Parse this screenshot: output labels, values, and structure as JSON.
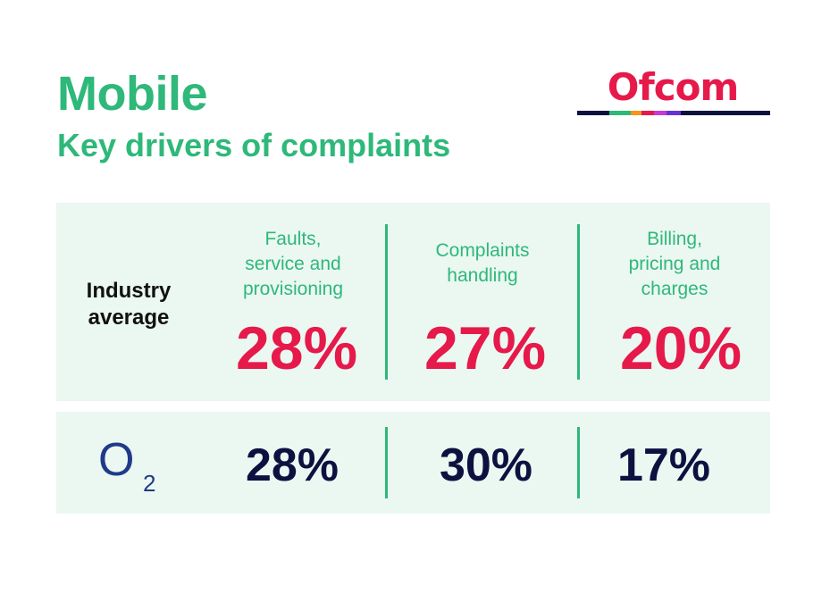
{
  "header": {
    "title": "Mobile",
    "subtitle": "Key drivers of complaints",
    "logo_text": "Ofcom",
    "logo_colors": [
      "#0d1140",
      "#2eb87a",
      "#f7941d",
      "#e6194b",
      "#c63bd1",
      "#6b2fd6",
      "#0d1140"
    ]
  },
  "chart_data": {
    "type": "table",
    "columns": [
      "Faults, service and provisioning",
      "Complaints handling",
      "Billing, pricing and charges"
    ],
    "column_lines": [
      [
        "Faults,",
        "service and",
        "provisioning"
      ],
      [
        "Complaints",
        "handling"
      ],
      [
        "Billing,",
        "pricing and",
        "charges"
      ]
    ],
    "rows": [
      {
        "label": "Industry average",
        "label_lines": [
          "Industry",
          "average"
        ],
        "values": [
          "28%",
          "27%",
          "20%"
        ]
      },
      {
        "label": "O2",
        "label_parts": [
          "O",
          "2"
        ],
        "values": [
          "28%",
          "30%",
          "17%"
        ]
      }
    ],
    "colors": {
      "industry_value": "#e6194b",
      "o2_value": "#0d1140",
      "o2_logo": "#1f3a8a",
      "heading": "#2eb87a",
      "panel": "#ebf7f1"
    }
  }
}
